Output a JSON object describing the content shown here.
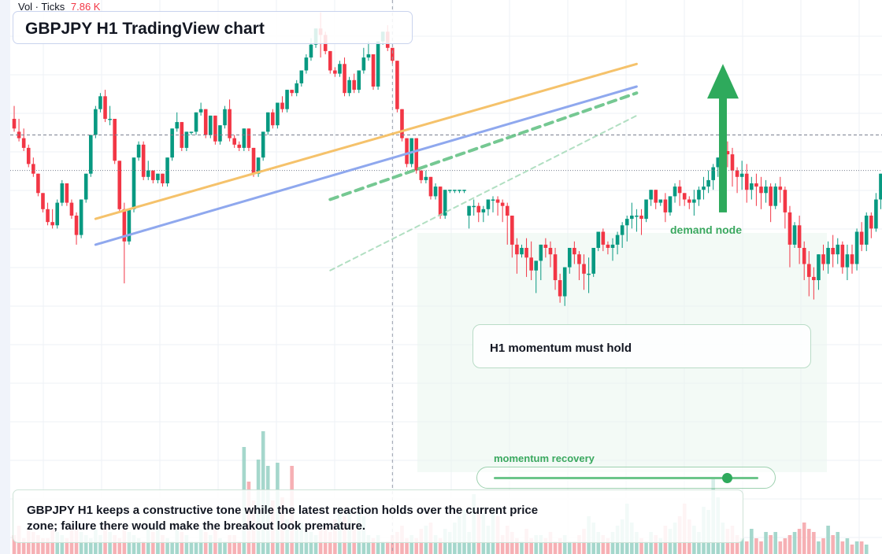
{
  "header": {
    "indicator": "Vol · Ticks",
    "indicator_value": "7.86 K",
    "title": "GBPJPY H1 TradingView chart"
  },
  "colors": {
    "bull": "#089981",
    "bear": "#f23645",
    "orange_line": "#f5c26b",
    "blue_line": "#8fa8ee",
    "green_accent": "#2eaa5c"
  },
  "chart_data": {
    "type": "candlestick",
    "title": "GBPJPY H1 TradingView chart",
    "symbol": "GBPJPY",
    "timeframe": "H1",
    "price_axis": {
      "min": 0,
      "max": 100
    },
    "volume_axis": {
      "min": 0,
      "max": 100
    },
    "candles": [
      [
        70,
        74,
        67,
        66
      ],
      [
        66,
        70,
        64,
        63
      ],
      [
        64,
        67,
        61,
        60
      ],
      [
        61,
        62,
        56,
        55
      ],
      [
        56,
        58,
        53,
        52
      ],
      [
        53,
        53,
        47,
        46
      ],
      [
        47,
        47,
        42,
        41
      ],
      [
        42,
        44,
        38,
        37
      ],
      [
        38,
        42,
        37,
        36
      ],
      [
        37,
        45,
        44,
        36
      ],
      [
        44,
        51,
        50,
        43
      ],
      [
        50,
        50,
        44,
        43
      ],
      [
        44,
        45,
        40,
        39
      ],
      [
        40,
        41,
        34,
        31
      ],
      [
        34,
        45,
        45,
        33
      ],
      [
        45,
        53,
        53,
        44
      ],
      [
        53,
        65,
        65,
        52
      ],
      [
        65,
        74,
        73,
        64
      ],
      [
        73,
        78,
        77,
        72
      ],
      [
        77,
        79,
        70,
        69
      ],
      [
        70,
        74,
        70,
        68
      ],
      [
        70,
        70,
        57,
        56
      ],
      [
        57,
        57,
        42,
        41
      ],
      [
        42,
        44,
        32,
        19
      ],
      [
        32,
        42,
        42,
        31
      ],
      [
        42,
        58,
        58,
        41
      ],
      [
        58,
        63,
        62,
        57
      ],
      [
        62,
        63,
        52,
        51
      ],
      [
        52,
        57,
        54,
        51
      ],
      [
        54,
        54,
        51,
        50
      ],
      [
        51,
        51,
        53,
        50
      ],
      [
        53,
        53,
        50,
        49
      ],
      [
        50,
        58,
        58,
        49
      ],
      [
        58,
        67,
        67,
        57
      ],
      [
        67,
        72,
        69,
        66
      ],
      [
        69,
        69,
        61,
        60
      ],
      [
        61,
        66,
        66,
        60
      ],
      [
        66,
        66,
        66,
        65
      ],
      [
        66,
        72,
        72,
        65
      ],
      [
        72,
        75,
        73,
        71
      ],
      [
        73,
        73,
        65,
        64
      ],
      [
        65,
        71,
        71,
        64
      ],
      [
        71,
        71,
        63,
        62
      ],
      [
        63,
        68,
        68,
        62
      ],
      [
        68,
        74,
        73,
        67
      ],
      [
        73,
        76,
        64,
        63
      ],
      [
        64,
        65,
        62,
        61
      ],
      [
        62,
        63,
        61,
        60
      ],
      [
        61,
        67,
        67,
        60
      ],
      [
        67,
        66,
        61,
        60
      ],
      [
        61,
        58,
        53,
        52
      ],
      [
        53,
        58,
        58,
        52
      ],
      [
        58,
        66,
        66,
        57
      ],
      [
        66,
        72,
        72,
        65
      ],
      [
        72,
        73,
        68,
        67
      ],
      [
        68,
        75,
        75,
        67
      ],
      [
        75,
        77,
        73,
        72
      ],
      [
        73,
        79,
        79,
        72
      ],
      [
        79,
        79,
        78,
        77
      ],
      [
        78,
        82,
        81,
        77
      ],
      [
        81,
        85,
        85,
        80
      ],
      [
        85,
        90,
        89,
        84
      ],
      [
        89,
        95,
        93,
        88
      ],
      [
        93,
        98,
        98,
        92
      ],
      [
        98,
        103,
        96,
        89
      ],
      [
        96,
        97,
        91,
        90
      ],
      [
        91,
        91,
        85,
        84
      ],
      [
        85,
        86,
        84,
        83
      ],
      [
        84,
        88,
        87,
        83
      ],
      [
        87,
        89,
        78,
        77
      ],
      [
        78,
        83,
        82,
        77
      ],
      [
        82,
        84,
        79,
        78
      ],
      [
        79,
        85,
        85,
        78
      ],
      [
        85,
        92,
        89,
        84
      ],
      [
        89,
        94,
        90,
        88
      ],
      [
        90,
        90,
        80,
        79
      ],
      [
        80,
        94,
        94,
        79
      ],
      [
        94,
        96,
        97,
        93
      ],
      [
        97,
        99,
        92,
        91
      ],
      [
        92,
        92,
        88,
        87
      ],
      [
        88,
        88,
        73,
        72
      ],
      [
        73,
        73,
        64,
        63
      ],
      [
        64,
        64,
        56,
        55
      ],
      [
        56,
        64,
        64,
        55
      ],
      [
        64,
        64,
        54,
        53
      ],
      [
        54,
        53,
        51,
        50
      ],
      [
        51,
        54,
        52,
        50
      ],
      [
        52,
        52,
        46,
        45
      ],
      [
        46,
        50,
        49,
        45
      ],
      [
        49,
        47,
        40,
        39
      ],
      [
        40,
        40,
        48,
        39
      ],
      [
        48,
        48,
        48,
        47
      ],
      [
        48,
        48,
        48,
        47
      ],
      [
        48,
        48,
        48,
        47
      ],
      [
        48,
        48,
        48,
        47
      ],
      [
        40,
        41,
        43,
        36
      ],
      [
        43,
        45,
        43,
        40
      ],
      [
        43,
        44,
        41,
        38
      ],
      [
        41,
        43,
        42,
        38
      ],
      [
        42,
        44,
        45,
        40
      ],
      [
        45,
        46,
        45,
        41
      ],
      [
        45,
        46,
        44,
        40
      ],
      [
        44,
        45,
        43,
        38
      ],
      [
        43,
        44,
        40,
        31
      ],
      [
        40,
        40,
        31,
        27
      ],
      [
        31,
        33,
        28,
        22
      ],
      [
        28,
        31,
        30,
        27
      ],
      [
        30,
        33,
        27,
        21
      ],
      [
        27,
        32,
        23,
        20
      ],
      [
        23,
        24,
        26,
        16
      ],
      [
        26,
        28,
        31,
        20
      ],
      [
        31,
        33,
        30,
        27
      ],
      [
        30,
        32,
        28,
        24
      ],
      [
        28,
        30,
        20,
        17
      ],
      [
        20,
        22,
        15,
        13
      ],
      [
        15,
        24,
        24,
        12
      ],
      [
        24,
        30,
        30,
        22
      ],
      [
        30,
        32,
        28,
        25
      ],
      [
        28,
        29,
        25,
        20
      ],
      [
        25,
        28,
        22,
        17
      ],
      [
        22,
        27,
        22,
        16
      ],
      [
        22,
        30,
        30,
        21
      ],
      [
        30,
        35,
        35,
        29
      ],
      [
        35,
        36,
        31,
        29
      ],
      [
        31,
        32,
        30,
        28
      ],
      [
        30,
        33,
        31,
        26
      ],
      [
        31,
        35,
        34,
        28
      ],
      [
        34,
        38,
        37,
        30
      ],
      [
        37,
        40,
        39,
        32
      ],
      [
        39,
        44,
        40,
        36
      ],
      [
        40,
        42,
        40,
        35
      ],
      [
        40,
        42,
        39,
        34
      ],
      [
        39,
        45,
        45,
        38
      ],
      [
        45,
        48,
        48,
        43
      ],
      [
        48,
        47,
        44,
        42
      ],
      [
        44,
        45,
        45,
        43
      ],
      [
        45,
        47,
        41,
        38
      ],
      [
        41,
        46,
        46,
        40
      ],
      [
        46,
        50,
        49,
        44
      ],
      [
        49,
        51,
        47,
        43
      ],
      [
        47,
        46,
        45,
        43
      ],
      [
        45,
        46,
        44,
        42
      ],
      [
        44,
        48,
        45,
        40
      ],
      [
        45,
        49,
        48,
        43
      ],
      [
        48,
        52,
        49,
        45
      ],
      [
        49,
        54,
        51,
        47
      ],
      [
        51,
        56,
        55,
        48
      ],
      [
        55,
        58,
        58,
        52
      ],
      [
        58,
        62,
        60,
        56
      ],
      [
        60,
        63,
        59,
        55
      ],
      [
        59,
        61,
        54,
        49
      ],
      [
        54,
        55,
        52,
        47
      ],
      [
        52,
        57,
        53,
        48
      ],
      [
        53,
        56,
        48,
        44
      ],
      [
        48,
        52,
        50,
        45
      ],
      [
        50,
        53,
        49,
        43
      ],
      [
        49,
        52,
        47,
        42
      ],
      [
        47,
        51,
        49,
        44
      ],
      [
        49,
        50,
        43,
        38
      ],
      [
        43,
        50,
        49,
        42
      ],
      [
        49,
        52,
        48,
        44
      ],
      [
        48,
        49,
        41,
        36
      ],
      [
        41,
        43,
        31,
        24
      ],
      [
        31,
        38,
        37,
        30
      ],
      [
        37,
        40,
        30,
        25
      ],
      [
        30,
        32,
        25,
        20
      ],
      [
        25,
        29,
        21,
        15
      ],
      [
        21,
        24,
        20,
        14
      ],
      [
        20,
        23,
        28,
        17
      ],
      [
        28,
        31,
        25,
        23
      ],
      [
        25,
        32,
        30,
        22
      ],
      [
        30,
        34,
        28,
        24
      ],
      [
        28,
        33,
        31,
        25
      ],
      [
        31,
        32,
        24,
        22
      ],
      [
        24,
        31,
        28,
        20
      ],
      [
        28,
        31,
        25,
        22
      ],
      [
        25,
        36,
        35,
        23
      ],
      [
        35,
        38,
        31,
        29
      ],
      [
        31,
        41,
        40,
        29
      ],
      [
        40,
        41,
        36,
        33
      ],
      [
        36,
        47,
        45,
        35
      ],
      [
        45,
        52,
        53,
        42
      ],
      [
        53,
        55,
        51,
        50
      ]
    ],
    "volumes": [
      6,
      9,
      5,
      8,
      7,
      6,
      5,
      5,
      8,
      7,
      6,
      5,
      9,
      8,
      7,
      6,
      5,
      8,
      6,
      9,
      7,
      6,
      5,
      8,
      7,
      6,
      5,
      4,
      8,
      7,
      9,
      6,
      5,
      4,
      8,
      7,
      6,
      4,
      4,
      8,
      7,
      6,
      8,
      5,
      4,
      6,
      6,
      4,
      34,
      23,
      17,
      30,
      39,
      28,
      17,
      29,
      18,
      11,
      28,
      9,
      10,
      7,
      7,
      6,
      8,
      9,
      7,
      11,
      15,
      12,
      13,
      8,
      13,
      12,
      6,
      5,
      6,
      4,
      4,
      6,
      7,
      9,
      5,
      6,
      5,
      8,
      9,
      10,
      6,
      5,
      8,
      7,
      10,
      12,
      14,
      7,
      19,
      13,
      13,
      9,
      14,
      12,
      6,
      9,
      7,
      5,
      4,
      8,
      5,
      6,
      6,
      5,
      7,
      4,
      5,
      6,
      4,
      4,
      6,
      8,
      12,
      10,
      7,
      6,
      5,
      7,
      9,
      11,
      16,
      10,
      7,
      5,
      4,
      7,
      6,
      5,
      9,
      8,
      10,
      12,
      16,
      11,
      9,
      7,
      15,
      14,
      24,
      18,
      10,
      8,
      9,
      6,
      5,
      4,
      8,
      5,
      4,
      7,
      6,
      7,
      4,
      5,
      6,
      7,
      8,
      10,
      8,
      7,
      4,
      5,
      9,
      6,
      7,
      4,
      5,
      3,
      4,
      4,
      3
    ],
    "x_gridlines": 0,
    "horizontal_lines": [
      {
        "style": "dashed",
        "price": 65
      },
      {
        "style": "dotted",
        "price": 54
      }
    ],
    "vertical_crosshair": {
      "style": "dashed",
      "index": 79
    },
    "trendlines": [
      {
        "color": "orange",
        "from": [
          17,
          39
        ],
        "to": [
          130,
          87
        ]
      },
      {
        "color": "blue",
        "from": [
          17,
          31
        ],
        "to": [
          130,
          80
        ]
      },
      {
        "color": "green-dashed",
        "from": [
          66,
          45
        ],
        "to": [
          130,
          78
        ]
      },
      {
        "color": "green-dashed-light",
        "from": [
          66,
          23
        ],
        "to": [
          130,
          71
        ]
      }
    ],
    "arrow": {
      "direction": "up",
      "from_price": 41,
      "to_price": 87
    },
    "annotations": [
      "demand node",
      "H1 momentum must hold",
      "momentum recovery"
    ]
  },
  "callout": {
    "text": "H1 momentum must hold"
  },
  "demand": {
    "label": "demand node"
  },
  "momentum": {
    "label": "momentum recovery",
    "value": 0.88
  },
  "summary": {
    "text": "GBPJPY H1 keeps a constructive tone while the latest reaction holds over the current price zone; failure there would make the breakout look premature."
  }
}
